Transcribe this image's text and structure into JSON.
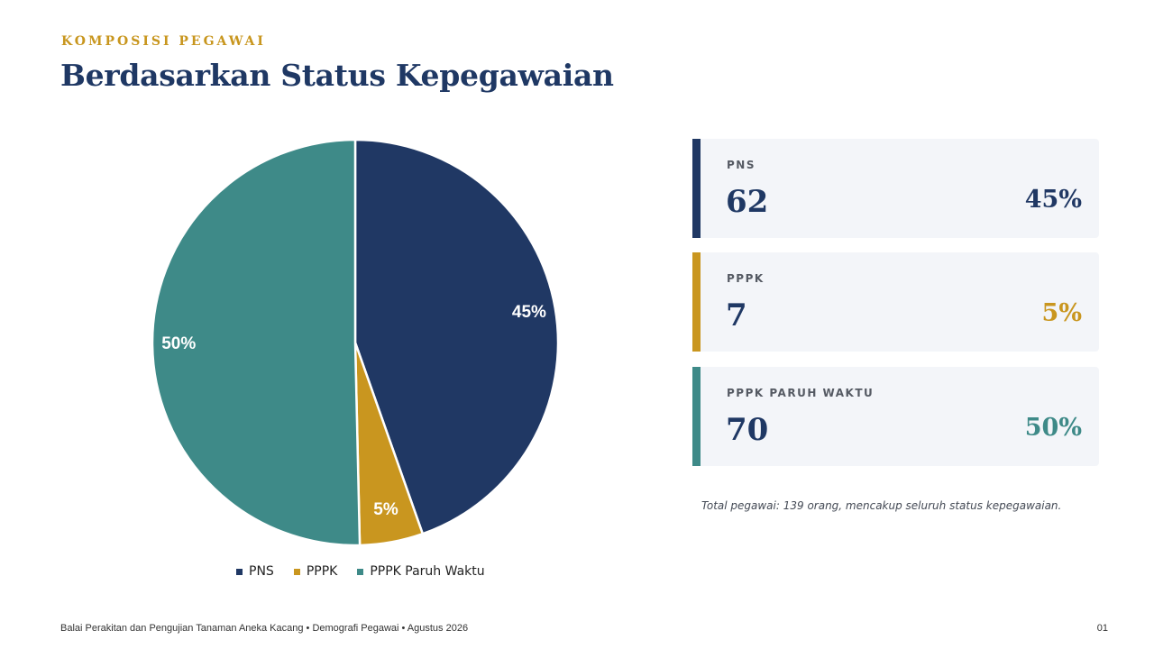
{
  "header": {
    "eyebrow": "KOMPOSISI PEGAWAI",
    "title": "Berdasarkan Status Kepegawaian"
  },
  "chart_data": {
    "type": "pie",
    "categories": [
      "PNS",
      "PPPK",
      "PPPK Paruh Waktu"
    ],
    "values": [
      62,
      7,
      70
    ],
    "data_labels": [
      "45%",
      "5%",
      "50%"
    ],
    "colors": [
      "#203864",
      "#c9961f",
      "#3e8a88"
    ],
    "legend": "bottom"
  },
  "cards": [
    {
      "label": "PNS",
      "count": "62",
      "percent": "45%",
      "color": "#203864"
    },
    {
      "label": "PPPK",
      "count": "7",
      "percent": "5%",
      "color": "#c9961f"
    },
    {
      "label": "PPPK PARUH WAKTU",
      "count": "70",
      "percent": "50%",
      "color": "#3e8a88"
    }
  ],
  "note": "Total pegawai: 139 orang, mencakup seluruh status kepegawaian.",
  "footer": {
    "text": "Balai Perakitan dan Pengujian Tanaman Aneka Kacang  •  Demografi Pegawai  •  Agustus 2026",
    "page": "01"
  }
}
